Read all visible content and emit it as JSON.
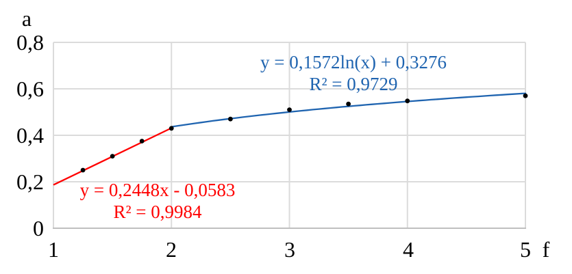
{
  "chart_data": {
    "type": "scatter",
    "title": "",
    "y_axis_title": "a",
    "x_axis_title": "f",
    "xlim": [
      1,
      5
    ],
    "ylim": [
      0,
      0.8
    ],
    "x_ticks": [
      1,
      2,
      3,
      4,
      5
    ],
    "x_tick_labels": [
      "1",
      "2",
      "3",
      "4",
      "5"
    ],
    "y_ticks": [
      0,
      0.2,
      0.4,
      0.6,
      0.8
    ],
    "y_tick_labels": [
      "0",
      "0,2",
      "0,4",
      "0,6",
      "0,8"
    ],
    "grid": true,
    "legend": "none",
    "points": [
      [
        1.25,
        0.25
      ],
      [
        1.5,
        0.31
      ],
      [
        1.75,
        0.375
      ],
      [
        2.0,
        0.43
      ],
      [
        2.5,
        0.47
      ],
      [
        3.0,
        0.51
      ],
      [
        3.5,
        0.535
      ],
      [
        4.0,
        0.548
      ],
      [
        5.0,
        0.57
      ]
    ],
    "point_color": "#000000",
    "grid_color": "#DBDBDB",
    "axis_color": "#BFBFBF",
    "trendlines": [
      {
        "name": "linear",
        "color": "#FF0000",
        "x_range": [
          1,
          2
        ],
        "slope": 0.2448,
        "intercept": -0.0583,
        "equation": "y = 0,2448x - 0,0583",
        "r_squared": "R² = 0,9984"
      },
      {
        "name": "logarithmic",
        "color": "#1F64B0",
        "x_range": [
          2,
          5
        ],
        "ln_coef": 0.1572,
        "intercept": 0.3276,
        "equation": "y = 0,1572ln(x) + 0,3276",
        "r_squared": "R² = 0,9729"
      }
    ]
  }
}
